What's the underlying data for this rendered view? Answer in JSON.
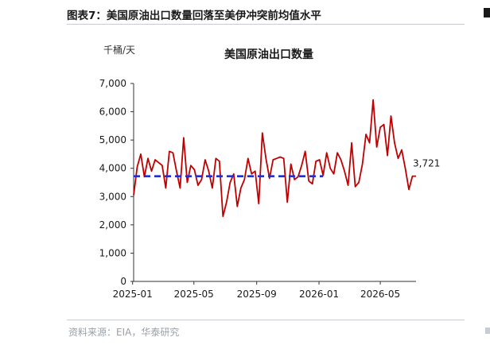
{
  "figure": {
    "label": "图表7：",
    "title": "美国原油出口数量回落至美伊冲突前均值水平"
  },
  "source": "资料来源：EIA，华泰研究",
  "chart_data": {
    "type": "line",
    "title": "美国原油出口数量",
    "ylabel": "千桶/天",
    "xlabel": "",
    "ylim": [
      0,
      7000
    ],
    "yticks": [
      0,
      1000,
      2000,
      3000,
      4000,
      5000,
      6000,
      7000
    ],
    "ytick_labels": [
      "0",
      "1,000",
      "2,000",
      "3,000",
      "4,000",
      "5,000",
      "6,000",
      "7,000"
    ],
    "xticks": [
      {
        "date": "2025-01-01",
        "label": "2025-01"
      },
      {
        "date": "2025-05-01",
        "label": "2025-05"
      },
      {
        "date": "2025-09-01",
        "label": "2025-09"
      },
      {
        "date": "2026-01-01",
        "label": "2026-01"
      },
      {
        "date": "2026-05-01",
        "label": "2026-05"
      }
    ],
    "xlim": [
      "2025-01-03",
      "2026-07-10"
    ],
    "grid": false,
    "legend": "none",
    "colors": {
      "series": "#c00000",
      "average": "#1f2fd6",
      "axis": "#333333"
    },
    "series": [
      {
        "style": "solid",
        "x": [
          "2025-01-03",
          "2025-01-10",
          "2025-01-17",
          "2025-01-24",
          "2025-01-31",
          "2025-02-07",
          "2025-02-14",
          "2025-02-21",
          "2025-02-28",
          "2025-03-07",
          "2025-03-14",
          "2025-03-21",
          "2025-03-28",
          "2025-04-04",
          "2025-04-11",
          "2025-04-18",
          "2025-04-25",
          "2025-05-02",
          "2025-05-09",
          "2025-05-16",
          "2025-05-23",
          "2025-05-30",
          "2025-06-06",
          "2025-06-13",
          "2025-06-20",
          "2025-06-27",
          "2025-07-04",
          "2025-07-11",
          "2025-07-18",
          "2025-07-25",
          "2025-08-01",
          "2025-08-08",
          "2025-08-15",
          "2025-08-22",
          "2025-08-29",
          "2025-09-05",
          "2025-09-12",
          "2025-09-19",
          "2025-09-26",
          "2025-10-03",
          "2025-10-10",
          "2025-10-17",
          "2025-10-24",
          "2025-10-31",
          "2025-11-07",
          "2025-11-14",
          "2025-11-21",
          "2025-11-28",
          "2025-12-05",
          "2025-12-12",
          "2025-12-19",
          "2025-12-26",
          "2026-01-02",
          "2026-01-09",
          "2026-01-16",
          "2026-01-23",
          "2026-01-30",
          "2026-02-06",
          "2026-02-13",
          "2026-02-20",
          "2026-02-27",
          "2026-03-06",
          "2026-03-13",
          "2026-03-20",
          "2026-03-27",
          "2026-04-03",
          "2026-04-10",
          "2026-04-17",
          "2026-04-24",
          "2026-05-01",
          "2026-05-08",
          "2026-05-15",
          "2026-05-22",
          "2026-05-29",
          "2026-06-05",
          "2026-06-12",
          "2026-06-19",
          "2026-06-26",
          "2026-07-03",
          "2026-07-10"
        ],
        "values": [
          3050,
          4050,
          4500,
          3700,
          4350,
          3900,
          4300,
          4200,
          4100,
          3300,
          4600,
          4550,
          3900,
          3300,
          5080,
          3500,
          4100,
          3950,
          3400,
          3600,
          4300,
          3900,
          3300,
          4350,
          4250,
          2300,
          2800,
          3500,
          3800,
          2650,
          3300,
          3600,
          4350,
          3800,
          3900,
          2750,
          5250,
          4350,
          3650,
          4300,
          4350,
          4400,
          4350,
          2800,
          4150,
          3600,
          3700,
          4100,
          4600,
          3550,
          3450,
          4250,
          4300,
          3750,
          4550,
          4000,
          3800,
          4550,
          4300,
          3900,
          3400,
          4900,
          3350,
          3500,
          4150,
          5200,
          4900,
          6420,
          4750,
          5450,
          5550,
          4450,
          5850,
          4900,
          4350,
          4650,
          4000,
          3250,
          3721,
          3721
        ]
      },
      {
        "style": "dashed",
        "x": [
          "2025-01-03",
          "2026-01-09"
        ],
        "values": [
          3720,
          3720
        ]
      }
    ],
    "annotations": [
      {
        "text": "3,721",
        "x": "2026-07-10",
        "y": 3721
      }
    ]
  }
}
